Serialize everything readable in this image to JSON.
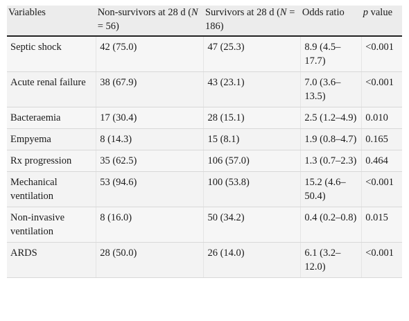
{
  "table": {
    "headers": {
      "variables": "Variables",
      "non_survivors_prefix": "Non-survivors at 28 d (",
      "non_survivors_n": "N",
      "non_survivors_suffix": " = 56)",
      "survivors_prefix": "Survivors at 28 d (",
      "survivors_n": "N",
      "survivors_suffix": " = 186)",
      "odds_ratio": "Odds ratio",
      "p_symbol": "p",
      "p_rest": " value"
    },
    "rows": [
      {
        "variable": "Septic shock",
        "non_survivors": "42 (75.0)",
        "survivors": "47 (25.3)",
        "odds_ratio": "8.9 (4.5–17.7)",
        "p_value": "<0.001"
      },
      {
        "variable": "Acute renal failure",
        "non_survivors": "38 (67.9)",
        "survivors": "43 (23.1)",
        "odds_ratio": "7.0 (3.6–13.5)",
        "p_value": "<0.001"
      },
      {
        "variable": "Bacteraemia",
        "non_survivors": "17 (30.4)",
        "survivors": "28 (15.1)",
        "odds_ratio": "2.5 (1.2–4.9)",
        "p_value": "0.010"
      },
      {
        "variable": "Empyema",
        "non_survivors": "8 (14.3)",
        "survivors": "15 (8.1)",
        "odds_ratio": "1.9 (0.8–4.7)",
        "p_value": "0.165"
      },
      {
        "variable": "Rx progression",
        "non_survivors": "35 (62.5)",
        "survivors": "106 (57.0)",
        "odds_ratio": "1.3 (0.7–2.3)",
        "p_value": "0.464"
      },
      {
        "variable": "Mechanical ventilation",
        "non_survivors": "53 (94.6)",
        "survivors": "100 (53.8)",
        "odds_ratio": "15.2 (4.6–50.4)",
        "p_value": "<0.001"
      },
      {
        "variable": "Non-invasive ventilation",
        "non_survivors": "8 (16.0)",
        "survivors": "50 (34.2)",
        "odds_ratio": "0.4 (0.2–0.8)",
        "p_value": "0.015"
      },
      {
        "variable": "ARDS",
        "non_survivors": "28 (50.0)",
        "survivors": "26 (14.0)",
        "odds_ratio": "6.1 (3.2–12.0)",
        "p_value": "<0.001"
      }
    ]
  }
}
